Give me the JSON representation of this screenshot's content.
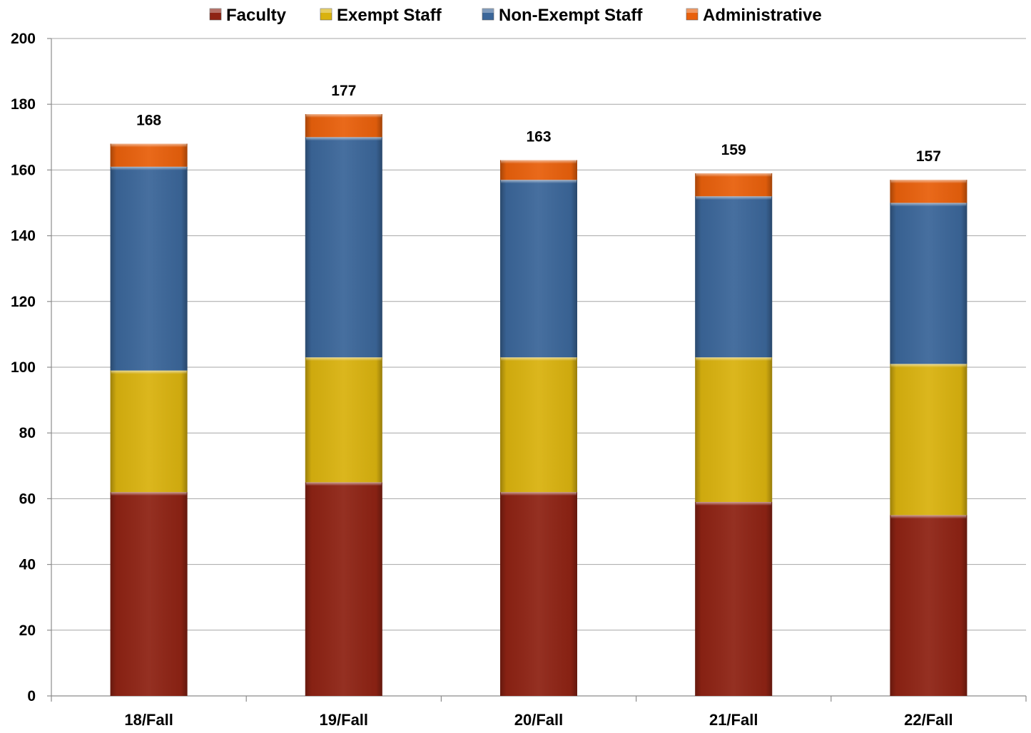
{
  "chart_data": {
    "type": "bar",
    "stacked": true,
    "categories": [
      "18/Fall",
      "19/Fall",
      "20/Fall",
      "21/Fall",
      "22/Fall"
    ],
    "series": [
      {
        "name": "Faculty",
        "color": "#8e2314",
        "values": [
          62,
          65,
          62,
          59,
          55
        ]
      },
      {
        "name": "Exempt Staff",
        "color": "#d9b20f",
        "values": [
          37,
          38,
          41,
          44,
          46
        ]
      },
      {
        "name": "Non-Exempt Staff",
        "color": "#3b6699",
        "values": [
          62,
          67,
          54,
          49,
          49
        ]
      },
      {
        "name": "Administrative",
        "color": "#e8600c",
        "values": [
          7,
          7,
          6,
          7,
          7
        ]
      }
    ],
    "totals": [
      "168",
      "177",
      "163",
      "159",
      "157"
    ],
    "ylim": [
      0,
      200
    ],
    "yticks": [
      "0",
      "20",
      "40",
      "60",
      "80",
      "100",
      "120",
      "140",
      "160",
      "180",
      "200"
    ],
    "grid": true,
    "legend_position": "top",
    "title": "",
    "xlabel": "",
    "ylabel": ""
  }
}
